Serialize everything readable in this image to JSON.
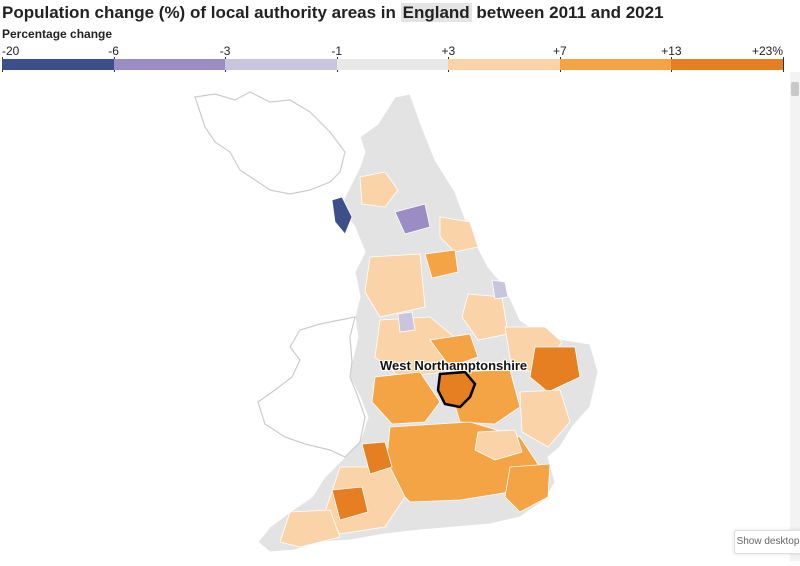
{
  "title": {
    "before": "Population change (%) of local authority areas in ",
    "highlight": "England",
    "after": " between 2011 and 2021"
  },
  "legend": {
    "title": "Percentage change",
    "ticks": [
      "-20",
      "-6",
      "-3",
      "-1",
      "+3",
      "+7",
      "+13",
      "+23%"
    ],
    "colors": [
      "#3d4f8a",
      "#9b8dc4",
      "#cac5df",
      "#e8e8e8",
      "#fad3a8",
      "#f5a445",
      "#e67e22"
    ]
  },
  "map": {
    "selected_area": "West Northamptonshire",
    "colors": {
      "land_default": "#e3e3e3",
      "wales": "#ffffff",
      "border": "#ffffff",
      "outline": "#cccccc",
      "selected_outline": "#000000"
    }
  },
  "controls": {
    "show_desktop": "Show desktop"
  }
}
